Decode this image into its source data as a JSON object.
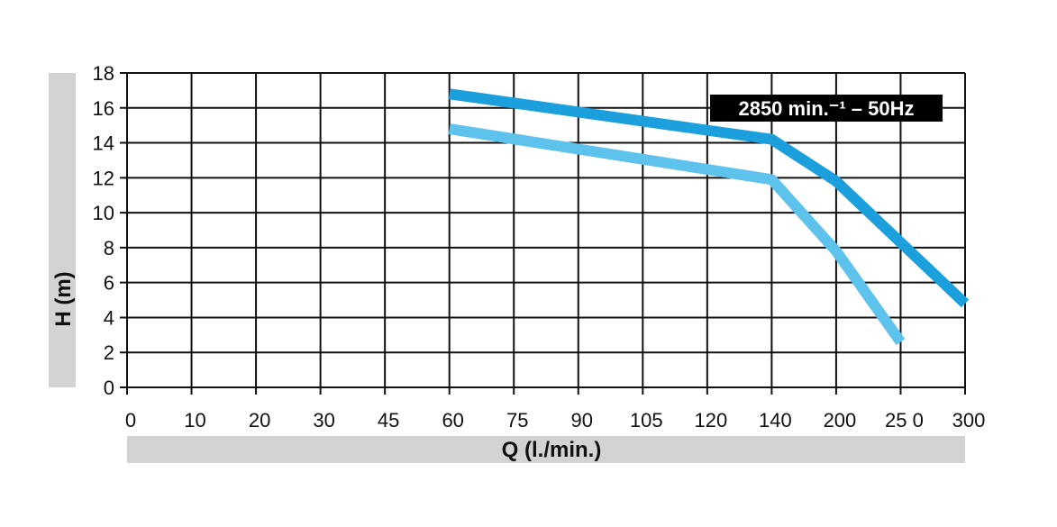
{
  "chart_data": {
    "type": "line",
    "xlabel": "Q (l./min.)",
    "ylabel": "H (m)",
    "x_tick_labels": [
      "0",
      "10",
      "20",
      "30",
      "45",
      "60",
      "75",
      "90",
      "105",
      "120",
      "140",
      "200",
      "25 0",
      "300"
    ],
    "y_tick_labels": [
      "0",
      "2",
      "4",
      "6",
      "8",
      "10",
      "12",
      "14",
      "16",
      "18"
    ],
    "ylim": [
      0,
      18
    ],
    "grid": true,
    "annotation": "2850 min.⁻¹ – 50Hz",
    "series": [
      {
        "color": "#1ba0dd",
        "points": [
          {
            "x": "60",
            "y": 16.8
          },
          {
            "x": "140",
            "y": 14.2
          },
          {
            "x": "200",
            "y": 11.8
          },
          {
            "x": "300",
            "y": 4.8
          }
        ]
      },
      {
        "color": "#5ec3ec",
        "points": [
          {
            "x": "60",
            "y": 14.8
          },
          {
            "x": "140",
            "y": 11.9
          },
          {
            "x": "200",
            "y": 7.8
          },
          {
            "x": "25 0",
            "y": 2.6
          }
        ]
      }
    ]
  }
}
